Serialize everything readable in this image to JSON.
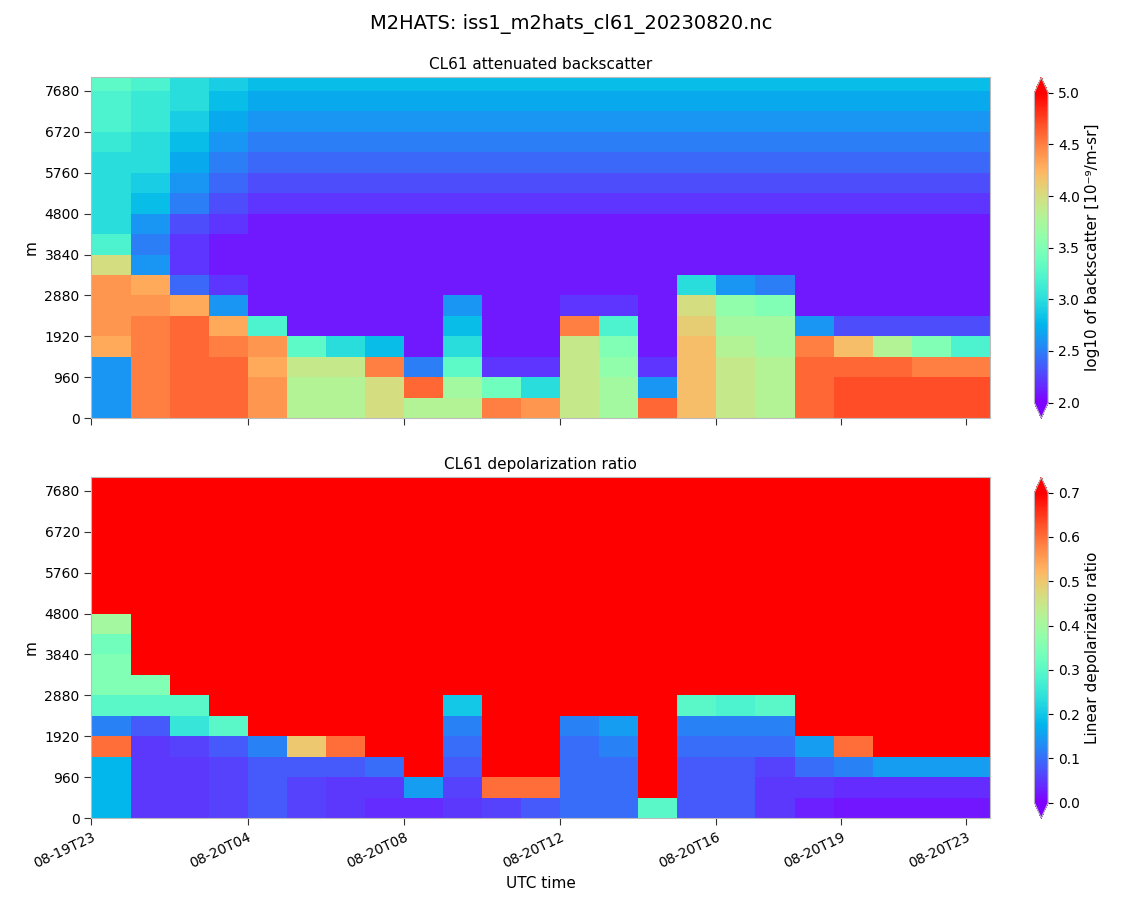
{
  "suptitle": "M2HATS: iss1_m2hats_cl61_20230820.nc",
  "chart_data": [
    {
      "type": "heatmap",
      "title": "CL61 attenuated backscatter",
      "ylabel": "m",
      "tick_labels": "y",
      "xlim": [
        0,
        23
      ],
      "ylim": [
        0,
        8000
      ],
      "xticks": [
        {
          "value": 0,
          "label": "08-19T23"
        },
        {
          "value": 4.0,
          "label": "08-20T04"
        },
        {
          "value": 8.0,
          "label": "08-20T08"
        },
        {
          "value": 12.0,
          "label": "08-20T12"
        },
        {
          "value": 16.0,
          "label": "08-20T16"
        },
        {
          "value": 19.2,
          "label": "08-20T19"
        },
        {
          "value": 22.4,
          "label": "08-20T23"
        }
      ],
      "yticks": [
        0,
        960,
        1920,
        2880,
        3840,
        4800,
        5760,
        6720,
        7680
      ],
      "x_edges": [
        0,
        1,
        2,
        3,
        4,
        5,
        6,
        7,
        8,
        9,
        10,
        11,
        12,
        13,
        14,
        15,
        16,
        17,
        18,
        19,
        20,
        21,
        22,
        23
      ],
      "y_edges": [
        0,
        480,
        960,
        1440,
        1920,
        2400,
        2880,
        3360,
        3840,
        4320,
        4800,
        5280,
        5760,
        6240,
        6720,
        7200,
        7680,
        8000
      ],
      "cells": [
        [
          2.6,
          4.5,
          4.6,
          4.6,
          4.4,
          3.8,
          3.8,
          4.0,
          3.8,
          3.8,
          4.5,
          4.4,
          3.9,
          3.7,
          4.6,
          4.2,
          3.9,
          3.8,
          4.6,
          4.7,
          4.7,
          4.7,
          4.7
        ],
        [
          2.6,
          4.5,
          4.6,
          4.6,
          4.4,
          3.8,
          3.8,
          4.0,
          4.6,
          3.7,
          3.4,
          3.0,
          3.9,
          3.7,
          2.6,
          4.2,
          3.9,
          3.8,
          4.6,
          4.7,
          4.7,
          4.7,
          4.7
        ],
        [
          2.6,
          4.5,
          4.6,
          4.6,
          4.3,
          3.9,
          3.9,
          4.5,
          2.5,
          3.3,
          2.2,
          2.2,
          3.9,
          3.6,
          2.2,
          4.2,
          3.9,
          3.8,
          4.6,
          4.6,
          4.6,
          4.5,
          4.5
        ],
        [
          4.3,
          4.5,
          4.6,
          4.5,
          4.4,
          3.3,
          3.0,
          2.8,
          2.1,
          3.0,
          2.1,
          2.1,
          3.9,
          3.5,
          2.1,
          4.2,
          3.8,
          3.7,
          4.5,
          4.2,
          3.8,
          3.5,
          3.2
        ],
        [
          4.4,
          4.5,
          4.6,
          4.3,
          3.2,
          2.1,
          2.1,
          2.1,
          2.1,
          2.8,
          2.1,
          2.1,
          4.5,
          3.2,
          2.1,
          4.1,
          3.7,
          3.7,
          2.6,
          2.3,
          2.3,
          2.3,
          2.3
        ],
        [
          4.4,
          4.4,
          4.3,
          2.6,
          2.1,
          2.1,
          2.1,
          2.1,
          2.1,
          2.6,
          2.1,
          2.1,
          2.2,
          2.2,
          2.1,
          4.0,
          3.6,
          3.5,
          2.1,
          2.1,
          2.1,
          2.1,
          2.1
        ],
        [
          4.4,
          4.3,
          2.4,
          2.2,
          2.1,
          2.1,
          2.1,
          2.1,
          2.1,
          2.1,
          2.1,
          2.1,
          2.1,
          2.1,
          2.1,
          3.0,
          2.6,
          2.5,
          2.1,
          2.1,
          2.1,
          2.1,
          2.1
        ],
        [
          4.0,
          2.6,
          2.2,
          2.1,
          2.1,
          2.1,
          2.1,
          2.1,
          2.1,
          2.1,
          2.1,
          2.1,
          2.1,
          2.1,
          2.1,
          2.1,
          2.1,
          2.1,
          2.1,
          2.1,
          2.1,
          2.1,
          2.1
        ],
        [
          3.2,
          2.5,
          2.2,
          2.1,
          2.1,
          2.1,
          2.1,
          2.1,
          2.1,
          2.1,
          2.1,
          2.1,
          2.1,
          2.1,
          2.1,
          2.1,
          2.1,
          2.1,
          2.1,
          2.1,
          2.1,
          2.1,
          2.1
        ],
        [
          3.0,
          2.6,
          2.3,
          2.2,
          2.1,
          2.1,
          2.1,
          2.1,
          2.1,
          2.1,
          2.1,
          2.1,
          2.1,
          2.1,
          2.1,
          2.1,
          2.1,
          2.1,
          2.1,
          2.1,
          2.1,
          2.1,
          2.1
        ],
        [
          3.0,
          2.8,
          2.5,
          2.3,
          2.2,
          2.2,
          2.2,
          2.2,
          2.2,
          2.2,
          2.2,
          2.2,
          2.2,
          2.2,
          2.2,
          2.2,
          2.2,
          2.2,
          2.2,
          2.2,
          2.2,
          2.2,
          2.2
        ],
        [
          3.0,
          2.9,
          2.6,
          2.4,
          2.3,
          2.3,
          2.3,
          2.3,
          2.3,
          2.3,
          2.3,
          2.3,
          2.3,
          2.3,
          2.3,
          2.3,
          2.3,
          2.3,
          2.3,
          2.3,
          2.3,
          2.3,
          2.3
        ],
        [
          3.0,
          3.0,
          2.7,
          2.5,
          2.4,
          2.4,
          2.4,
          2.4,
          2.4,
          2.4,
          2.4,
          2.4,
          2.4,
          2.4,
          2.4,
          2.4,
          2.4,
          2.4,
          2.4,
          2.4,
          2.4,
          2.4,
          2.4
        ],
        [
          3.1,
          3.0,
          2.8,
          2.6,
          2.5,
          2.5,
          2.5,
          2.5,
          2.5,
          2.5,
          2.5,
          2.5,
          2.5,
          2.5,
          2.5,
          2.5,
          2.5,
          2.5,
          2.5,
          2.5,
          2.5,
          2.5,
          2.5
        ],
        [
          3.2,
          3.1,
          2.9,
          2.7,
          2.6,
          2.6,
          2.6,
          2.6,
          2.6,
          2.6,
          2.6,
          2.6,
          2.6,
          2.6,
          2.6,
          2.6,
          2.6,
          2.6,
          2.6,
          2.6,
          2.6,
          2.6,
          2.6
        ],
        [
          3.2,
          3.1,
          3.0,
          2.8,
          2.7,
          2.7,
          2.7,
          2.7,
          2.7,
          2.7,
          2.7,
          2.7,
          2.7,
          2.7,
          2.7,
          2.7,
          2.7,
          2.7,
          2.7,
          2.7,
          2.7,
          2.7,
          2.7
        ],
        [
          3.3,
          3.2,
          3.0,
          2.9,
          2.8,
          2.8,
          2.8,
          2.8,
          2.8,
          2.8,
          2.8,
          2.8,
          2.8,
          2.8,
          2.8,
          2.8,
          2.8,
          2.8,
          2.8,
          2.8,
          2.8,
          2.8,
          2.8
        ]
      ],
      "colorbar": {
        "label": "log10 of backscatter [10⁻⁹/m-sr]",
        "range": [
          2.0,
          5.0
        ],
        "ticks": [
          2.0,
          2.5,
          3.0,
          3.5,
          4.0,
          4.5,
          5.0
        ]
      }
    },
    {
      "type": "heatmap",
      "title": "CL61 depolarization ratio",
      "ylabel": "m",
      "xlabel": "UTC time",
      "xlim": [
        0,
        23
      ],
      "ylim": [
        0,
        8000
      ],
      "xticks": [
        {
          "value": 0,
          "label": "08-19T23"
        },
        {
          "value": 4.0,
          "label": "08-20T04"
        },
        {
          "value": 8.0,
          "label": "08-20T08"
        },
        {
          "value": 12.0,
          "label": "08-20T12"
        },
        {
          "value": 16.0,
          "label": "08-20T16"
        },
        {
          "value": 19.2,
          "label": "08-20T19"
        },
        {
          "value": 22.4,
          "label": "08-20T23"
        }
      ],
      "yticks": [
        0,
        960,
        1920,
        2880,
        3840,
        4800,
        5760,
        6720,
        7680
      ],
      "x_edges": [
        0,
        1,
        2,
        3,
        4,
        5,
        6,
        7,
        8,
        9,
        10,
        11,
        12,
        13,
        14,
        15,
        16,
        17,
        18,
        19,
        20,
        21,
        22,
        23
      ],
      "y_edges": [
        0,
        480,
        960,
        1440,
        1920,
        2400,
        2880,
        3360,
        3840,
        4320,
        4800,
        5280,
        5760,
        6240,
        6720,
        7200,
        7680,
        8000
      ],
      "cells": [
        [
          0.18,
          0.05,
          0.05,
          0.06,
          0.08,
          0.06,
          0.05,
          0.04,
          0.04,
          0.05,
          0.06,
          0.08,
          0.1,
          0.1,
          0.3,
          0.08,
          0.08,
          0.05,
          0.03,
          0.02,
          0.02,
          0.02,
          0.02
        ],
        [
          0.18,
          0.05,
          0.05,
          0.06,
          0.08,
          0.06,
          0.05,
          0.05,
          0.15,
          0.06,
          0.6,
          0.6,
          0.1,
          0.1,
          0.7,
          0.08,
          0.08,
          0.05,
          0.05,
          0.04,
          0.04,
          0.04,
          0.04
        ],
        [
          0.18,
          0.05,
          0.05,
          0.06,
          0.08,
          0.08,
          0.08,
          0.1,
          0.7,
          0.08,
          0.7,
          0.7,
          0.1,
          0.1,
          0.7,
          0.08,
          0.08,
          0.06,
          0.1,
          0.12,
          0.15,
          0.15,
          0.15
        ],
        [
          0.6,
          0.05,
          0.06,
          0.08,
          0.12,
          0.5,
          0.6,
          0.7,
          0.7,
          0.1,
          0.7,
          0.7,
          0.1,
          0.12,
          0.7,
          0.1,
          0.1,
          0.1,
          0.15,
          0.6,
          0.7,
          0.7,
          0.7
        ],
        [
          0.12,
          0.08,
          0.25,
          0.3,
          0.7,
          0.7,
          0.7,
          0.7,
          0.7,
          0.12,
          0.7,
          0.7,
          0.12,
          0.15,
          0.7,
          0.12,
          0.12,
          0.12,
          0.7,
          0.7,
          0.7,
          0.7,
          0.7
        ],
        [
          0.3,
          0.3,
          0.3,
          0.7,
          0.7,
          0.7,
          0.7,
          0.7,
          0.7,
          0.2,
          0.7,
          0.7,
          0.7,
          0.7,
          0.7,
          0.3,
          0.28,
          0.3,
          0.7,
          0.7,
          0.7,
          0.7,
          0.7
        ],
        [
          0.35,
          0.35,
          0.7,
          0.7,
          0.7,
          0.7,
          0.7,
          0.7,
          0.7,
          0.7,
          0.7,
          0.7,
          0.7,
          0.7,
          0.7,
          0.7,
          0.7,
          0.7,
          0.7,
          0.7,
          0.7,
          0.7,
          0.7
        ],
        [
          0.35,
          0.7,
          0.7,
          0.7,
          0.7,
          0.7,
          0.7,
          0.7,
          0.7,
          0.7,
          0.7,
          0.7,
          0.7,
          0.7,
          0.7,
          0.7,
          0.7,
          0.7,
          0.7,
          0.7,
          0.7,
          0.7,
          0.7
        ],
        [
          0.33,
          0.7,
          0.7,
          0.7,
          0.7,
          0.7,
          0.7,
          0.7,
          0.7,
          0.7,
          0.7,
          0.7,
          0.7,
          0.7,
          0.7,
          0.7,
          0.7,
          0.7,
          0.7,
          0.7,
          0.7,
          0.7,
          0.7
        ],
        [
          0.4,
          0.7,
          0.7,
          0.7,
          0.7,
          0.7,
          0.7,
          0.7,
          0.7,
          0.7,
          0.7,
          0.7,
          0.7,
          0.7,
          0.7,
          0.7,
          0.7,
          0.7,
          0.7,
          0.7,
          0.7,
          0.7,
          0.7
        ],
        [
          0.7,
          0.7,
          0.7,
          0.7,
          0.7,
          0.7,
          0.7,
          0.7,
          0.7,
          0.7,
          0.7,
          0.7,
          0.7,
          0.7,
          0.7,
          0.7,
          0.7,
          0.7,
          0.7,
          0.7,
          0.7,
          0.7,
          0.7
        ],
        [
          0.7,
          0.7,
          0.7,
          0.7,
          0.7,
          0.7,
          0.7,
          0.7,
          0.7,
          0.7,
          0.7,
          0.7,
          0.7,
          0.7,
          0.7,
          0.7,
          0.7,
          0.7,
          0.7,
          0.7,
          0.7,
          0.7,
          0.7
        ],
        [
          0.7,
          0.7,
          0.7,
          0.7,
          0.7,
          0.7,
          0.7,
          0.7,
          0.7,
          0.7,
          0.7,
          0.7,
          0.7,
          0.7,
          0.7,
          0.7,
          0.7,
          0.7,
          0.7,
          0.7,
          0.7,
          0.7,
          0.7
        ],
        [
          0.7,
          0.7,
          0.7,
          0.7,
          0.7,
          0.7,
          0.7,
          0.7,
          0.7,
          0.7,
          0.7,
          0.7,
          0.7,
          0.7,
          0.7,
          0.7,
          0.7,
          0.7,
          0.7,
          0.7,
          0.7,
          0.7,
          0.7
        ],
        [
          0.7,
          0.7,
          0.7,
          0.7,
          0.7,
          0.7,
          0.7,
          0.7,
          0.7,
          0.7,
          0.7,
          0.7,
          0.7,
          0.7,
          0.7,
          0.7,
          0.7,
          0.7,
          0.7,
          0.7,
          0.7,
          0.7,
          0.7
        ],
        [
          0.7,
          0.7,
          0.7,
          0.7,
          0.7,
          0.7,
          0.7,
          0.7,
          0.7,
          0.7,
          0.7,
          0.7,
          0.7,
          0.7,
          0.7,
          0.7,
          0.7,
          0.7,
          0.7,
          0.7,
          0.7,
          0.7,
          0.7
        ],
        [
          0.7,
          0.7,
          0.7,
          0.7,
          0.7,
          0.7,
          0.7,
          0.7,
          0.7,
          0.7,
          0.7,
          0.7,
          0.7,
          0.7,
          0.7,
          0.7,
          0.7,
          0.7,
          0.7,
          0.7,
          0.7,
          0.7,
          0.7
        ]
      ],
      "colorbar": {
        "label": "Linear depolarizatio ratio",
        "range": [
          0.0,
          0.7
        ],
        "ticks": [
          0.0,
          0.1,
          0.2,
          0.3,
          0.4,
          0.5,
          0.6,
          0.7
        ]
      }
    }
  ]
}
